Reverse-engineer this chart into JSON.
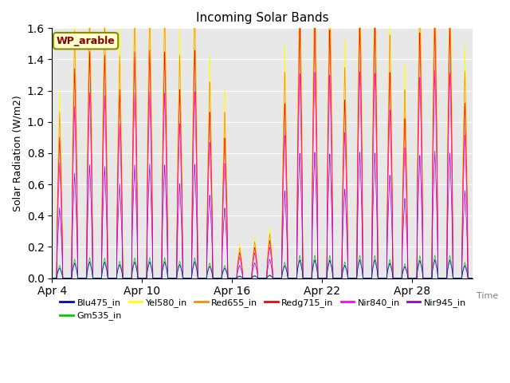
{
  "title": "Incoming Solar Bands",
  "xlabel": "Time",
  "ylabel": "Solar Radiation (W/m2)",
  "annotation": "WP_arable",
  "ylim": [
    0.0,
    1.6
  ],
  "yticks": [
    0.0,
    0.2,
    0.4,
    0.6,
    0.8,
    1.0,
    1.2,
    1.4,
    1.6
  ],
  "xtick_labels": [
    "Apr 4",
    "Apr 10",
    "Apr 16",
    "Apr 22",
    "Apr 28"
  ],
  "xtick_positions": [
    0,
    6,
    12,
    18,
    24
  ],
  "series": [
    {
      "label": "Blu475_in",
      "color": "#0000cc",
      "lw": 0.5,
      "scale": 0.08
    },
    {
      "label": "Gm535_in",
      "color": "#00cc00",
      "lw": 0.5,
      "scale": 0.1
    },
    {
      "label": "Yel580_in",
      "color": "#ffff00",
      "lw": 0.5,
      "scale": 1.47
    },
    {
      "label": "Red655_in",
      "color": "#ff8800",
      "lw": 0.5,
      "scale": 1.3
    },
    {
      "label": "Redg715_in",
      "color": "#ff0000",
      "lw": 0.5,
      "scale": 1.1
    },
    {
      "label": "Nir840_in",
      "color": "#ff00ff",
      "lw": 0.5,
      "scale": 0.9
    },
    {
      "label": "Nir945_in",
      "color": "#9900cc",
      "lw": 0.5,
      "scale": 0.55
    }
  ],
  "bg_color": "#e8e8e8",
  "fig_bg": "#ffffff",
  "n_days": 28,
  "samples_per_day": 288,
  "day_peaks": [
    0.82,
    1.22,
    1.32,
    1.3,
    1.1,
    1.32,
    1.33,
    1.32,
    1.1,
    1.33,
    0.97,
    0.82,
    0.15,
    0.18,
    0.22,
    1.02,
    1.46,
    1.47,
    1.45,
    1.04,
    1.47,
    1.46,
    1.2,
    0.93,
    1.43,
    1.48,
    1.46,
    1.02
  ],
  "annotation_bbox_fc": "#ffffcc",
  "annotation_bbox_ec": "#8b8b00",
  "annotation_color": "#8b0000"
}
